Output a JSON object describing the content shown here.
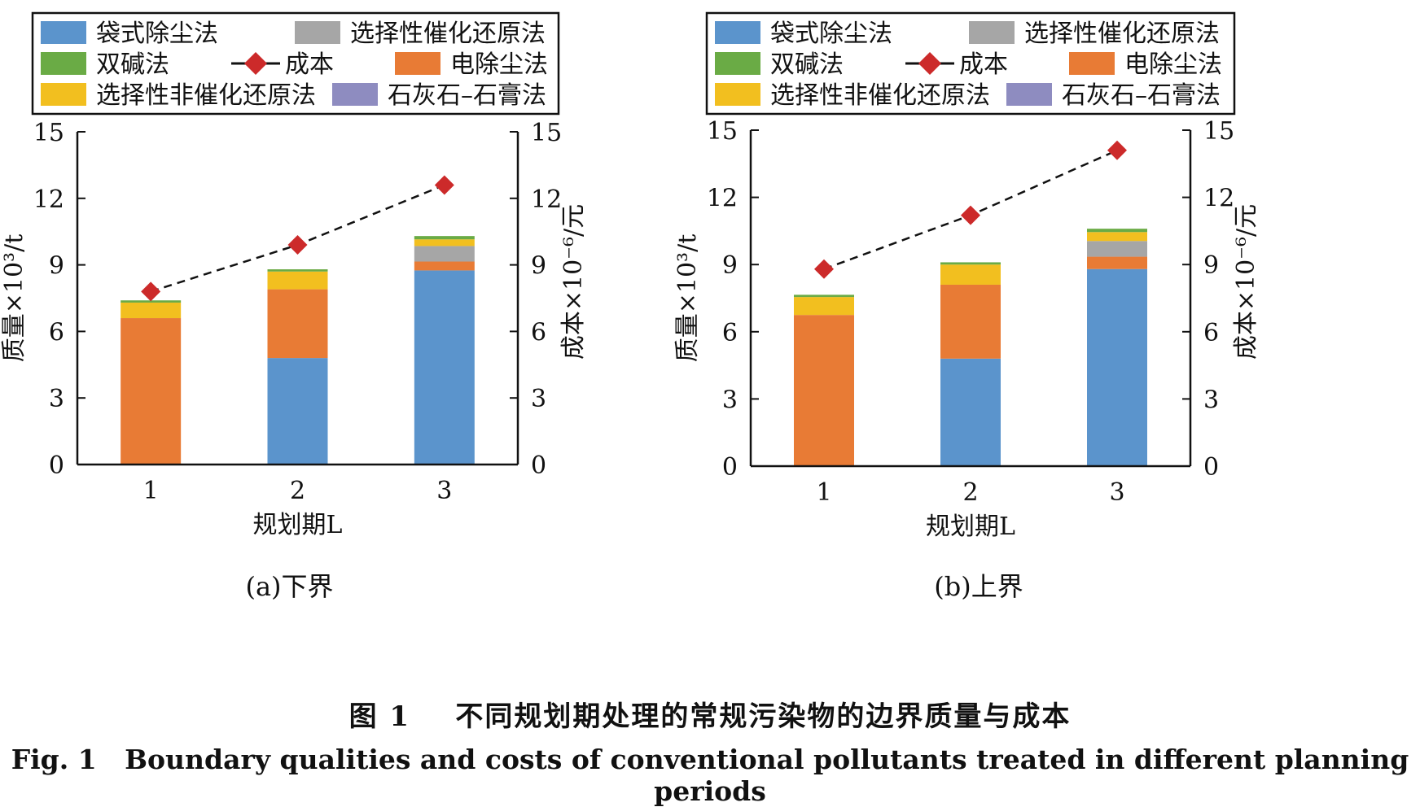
{
  "figure": {
    "caption_cn_label": "图 1",
    "caption_cn_text": "不同规划期处理的常规污染物的边界质量与成本",
    "caption_en_label": "Fig. 1",
    "caption_en_text": "Boundary qualities and costs of conventional pollutants treated in different planning periods"
  },
  "colors": {
    "bag": "#5b94cc",
    "scr": "#a6a6a6",
    "dual_alkali": "#6aab45",
    "esp": "#e87b35",
    "sncr": "#f2bf1f",
    "limestone": "#8e8cc0",
    "cost": "#cc2a2a"
  },
  "chart_data": [
    {
      "type": "bar",
      "panel_label": "(a)下界",
      "xlabel": "规划期L",
      "ylabel": "质量×10³/t",
      "y2label": "成本×10⁻⁶/元",
      "categories": [
        "1",
        "2",
        "3"
      ],
      "ylim": [
        0,
        15
      ],
      "y2lim": [
        0,
        15
      ],
      "yticks": [
        0,
        3,
        6,
        9,
        12,
        15
      ],
      "stacked": true,
      "legend_position": "top",
      "series": [
        {
          "key": "bag",
          "name": "袋式除尘法",
          "values": [
            0,
            4.8,
            8.75
          ]
        },
        {
          "key": "esp",
          "name": "电除尘法",
          "values": [
            6.6,
            3.1,
            0.4
          ]
        },
        {
          "key": "scr",
          "name": "选择性催化还原法",
          "values": [
            0,
            0,
            0.7
          ]
        },
        {
          "key": "sncr",
          "name": "选择性非催化还原法",
          "values": [
            0.7,
            0.8,
            0.3
          ]
        },
        {
          "key": "dual_alkali",
          "name": "双碱法",
          "values": [
            0.1,
            0.1,
            0.15
          ]
        },
        {
          "key": "limestone",
          "name": "石灰石–石膏法",
          "values": [
            0,
            0,
            0
          ]
        }
      ],
      "line_series": {
        "key": "cost",
        "name": "成本",
        "axis": "right",
        "values": [
          7.8,
          9.9,
          12.6
        ]
      }
    },
    {
      "type": "bar",
      "panel_label": "(b)上界",
      "xlabel": "规划期L",
      "ylabel": "质量×10³/t",
      "y2label": "成本×10⁻⁶/元",
      "categories": [
        "1",
        "2",
        "3"
      ],
      "ylim": [
        0,
        15
      ],
      "y2lim": [
        0,
        15
      ],
      "yticks": [
        0,
        3,
        6,
        9,
        12,
        15
      ],
      "stacked": true,
      "legend_position": "top",
      "series": [
        {
          "key": "bag",
          "name": "袋式除尘法",
          "values": [
            0,
            4.8,
            8.8
          ]
        },
        {
          "key": "esp",
          "name": "电除尘法",
          "values": [
            6.75,
            3.3,
            0.55
          ]
        },
        {
          "key": "scr",
          "name": "选择性催化还原法",
          "values": [
            0,
            0,
            0.7
          ]
        },
        {
          "key": "sncr",
          "name": "选择性非催化还原法",
          "values": [
            0.8,
            0.9,
            0.4
          ]
        },
        {
          "key": "dual_alkali",
          "name": "双碱法",
          "values": [
            0.1,
            0.1,
            0.15
          ]
        },
        {
          "key": "limestone",
          "name": "石灰石–石膏法",
          "values": [
            0,
            0,
            0
          ]
        }
      ],
      "line_series": {
        "key": "cost",
        "name": "成本",
        "axis": "right",
        "values": [
          8.8,
          11.2,
          14.1
        ]
      }
    }
  ]
}
